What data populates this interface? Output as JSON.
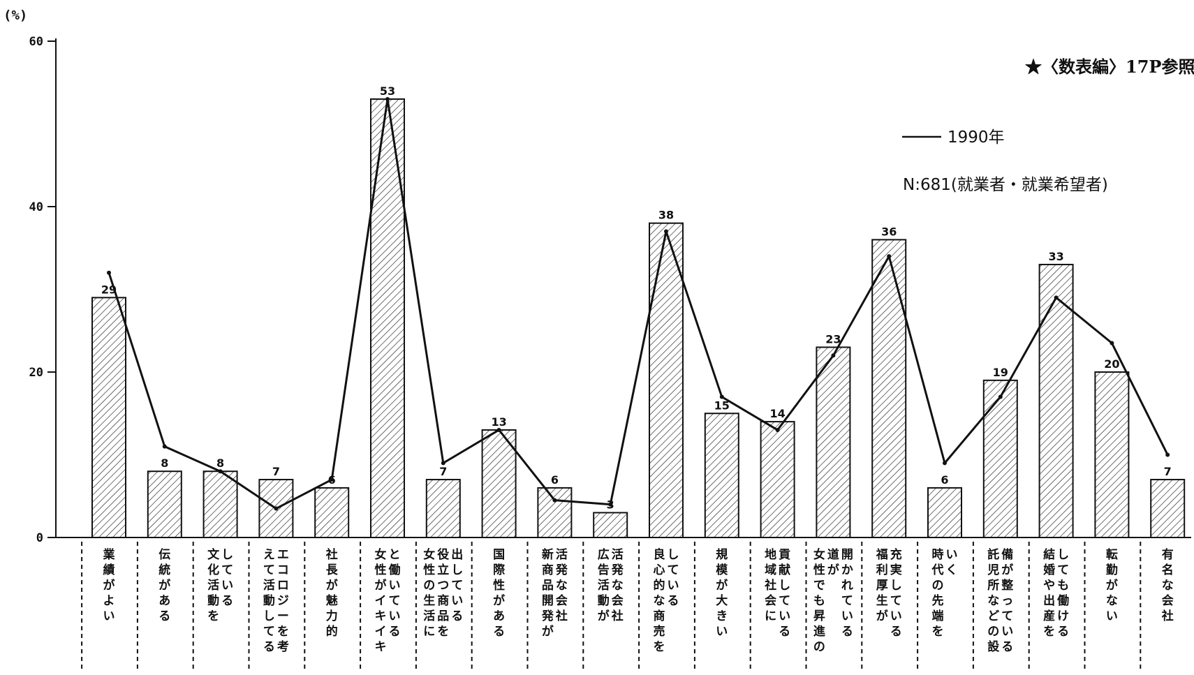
{
  "chart_data": {
    "type": "bar",
    "ylabel": "(%)",
    "ylim": [
      0,
      60
    ],
    "yticks": [
      0,
      20,
      40,
      60
    ],
    "grid": false,
    "note": "★〈数表編〉17P参照",
    "categories": [
      [
        "業績がよい"
      ],
      [
        "伝統がある"
      ],
      [
        "文化活動を",
        "している"
      ],
      [
        "えて活動してる",
        "エコロジーを考"
      ],
      [
        "社長が魅力的"
      ],
      [
        "女性がイキイキ",
        "と働いている"
      ],
      [
        "女性の生活に",
        "役立つ商品を",
        "出している"
      ],
      [
        "国際性がある"
      ],
      [
        "新商品開発が",
        "活発な会社"
      ],
      [
        "広告活動が",
        "活発な会社"
      ],
      [
        "良心的な商売を",
        "している"
      ],
      [
        "規模が大きい"
      ],
      [
        "地域社会に",
        "貢献している"
      ],
      [
        "女性でも昇進の",
        "道が",
        "開かれている"
      ],
      [
        "福利厚生が",
        "充実している"
      ],
      [
        "時代の先端を",
        "いく"
      ],
      [
        "託児所などの設",
        "備が整っている"
      ],
      [
        "結婚や出産を",
        "しても働ける"
      ],
      [
        "転勤がない"
      ],
      [
        "有名な会社"
      ]
    ],
    "series": [
      {
        "type": "bar",
        "values": [
          29,
          8,
          8,
          7,
          6,
          53,
          7,
          13,
          6,
          3,
          38,
          15,
          14,
          23,
          36,
          6,
          19,
          33,
          20,
          7
        ],
        "data_labels": [
          "29",
          "8",
          "8",
          "7",
          "6",
          "53",
          "7",
          "13",
          "6",
          "3",
          "38",
          "15",
          "14",
          "23",
          "36",
          "6",
          "19",
          "33",
          "20",
          "7"
        ]
      },
      {
        "name": "1990年",
        "type": "line",
        "values": [
          32,
          11,
          8,
          3.5,
          7,
          53,
          9,
          13,
          4.5,
          4,
          37,
          17,
          13,
          22,
          34,
          9,
          17,
          29,
          23.5,
          10
        ]
      }
    ],
    "legend": {
      "position": "top-right",
      "line_label": "1990年",
      "sample_label": "N:681(就業者・就業希望者)"
    },
    "colors": {
      "bar_fill": "#ffffff",
      "bar_hatch": "#222222",
      "line": "#111111",
      "axis": "#111111"
    }
  }
}
